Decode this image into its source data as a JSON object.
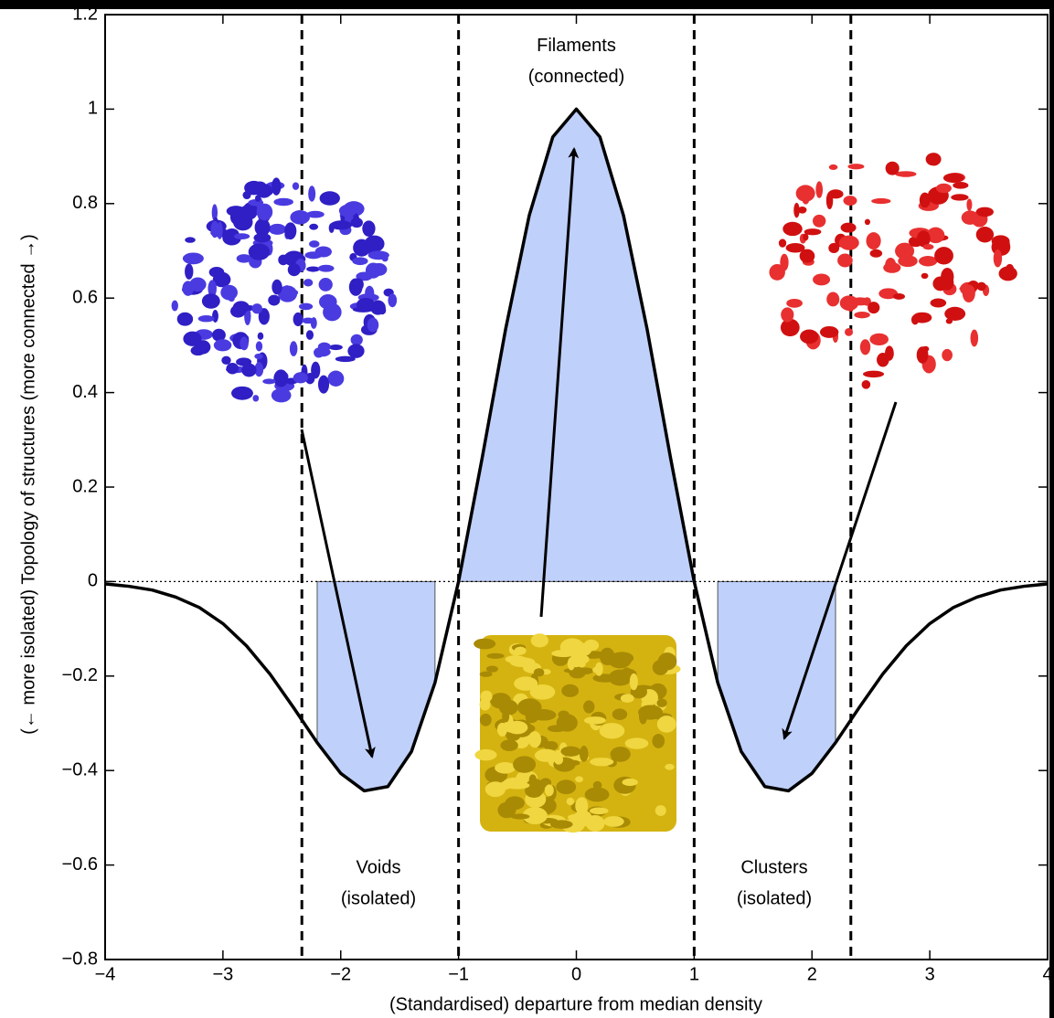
{
  "chart_data": {
    "type": "line",
    "xlabel": "(Standardised) departure from median density",
    "ylabel": "(← more isolated) Topology of structures (more connected →)",
    "x": [
      -4,
      -3.8,
      -3.6,
      -3.4,
      -3.2,
      -3,
      -2.8,
      -2.6,
      -2.4,
      -2.2,
      -2,
      -1.8,
      -1.6,
      -1.4,
      -1.2,
      -1,
      -0.8,
      -0.6,
      -0.4,
      -0.2,
      0,
      0.2,
      0.4,
      0.6,
      0.8,
      1,
      1.2,
      1.4,
      1.6,
      1.8,
      2,
      2.2,
      2.4,
      2.6,
      2.8,
      3,
      3.2,
      3.4,
      3.6,
      3.8,
      4
    ],
    "series": [
      {
        "color": "#000000",
        "values": [
          -0.005,
          -0.01,
          -0.018,
          -0.033,
          -0.055,
          -0.089,
          -0.136,
          -0.196,
          -0.267,
          -0.341,
          -0.406,
          -0.443,
          -0.434,
          -0.36,
          -0.214,
          0,
          0.261,
          0.535,
          0.775,
          0.941,
          1,
          0.941,
          0.775,
          0.535,
          0.261,
          0,
          -0.214,
          -0.36,
          -0.434,
          -0.443,
          -0.406,
          -0.341,
          -0.267,
          -0.196,
          -0.136,
          -0.089,
          -0.055,
          -0.033,
          -0.018,
          -0.01,
          -0.005
        ]
      }
    ],
    "shaded_regions": [
      [
        -2.2,
        -1.2
      ],
      [
        -1,
        1
      ],
      [
        1.2,
        2.2
      ]
    ],
    "shade_color": "#bfd0fb",
    "vlines": [
      -2.33,
      -1,
      1,
      2.33
    ],
    "hline": 0,
    "annotations": [
      {
        "lines": [
          "Filaments",
          "(connected)"
        ],
        "x": 0,
        "y": 1.1
      },
      {
        "lines": [
          "Voids",
          "(isolated)"
        ],
        "x": -1.68,
        "y": -0.64
      },
      {
        "lines": [
          "Clusters",
          "(isolated)"
        ],
        "x": 1.68,
        "y": -0.64
      }
    ],
    "xlim": [
      -4,
      4
    ],
    "ylim": [
      -0.8,
      1.2
    ],
    "xticks": [
      {
        "value": -4,
        "label": "−4"
      },
      {
        "value": -3,
        "label": "−3"
      },
      {
        "value": -2,
        "label": "−2"
      },
      {
        "value": -1,
        "label": "−1"
      },
      0,
      1,
      2,
      3,
      4
    ],
    "yticks": [
      {
        "value": -0.8,
        "label": "−0.8"
      },
      {
        "value": -0.6,
        "label": "−0.6"
      },
      {
        "value": -0.4,
        "label": "−0.4"
      },
      {
        "value": -0.2,
        "label": "−0.2"
      },
      0,
      0.2,
      0.4,
      0.6,
      0.8,
      1,
      1.2
    ]
  }
}
